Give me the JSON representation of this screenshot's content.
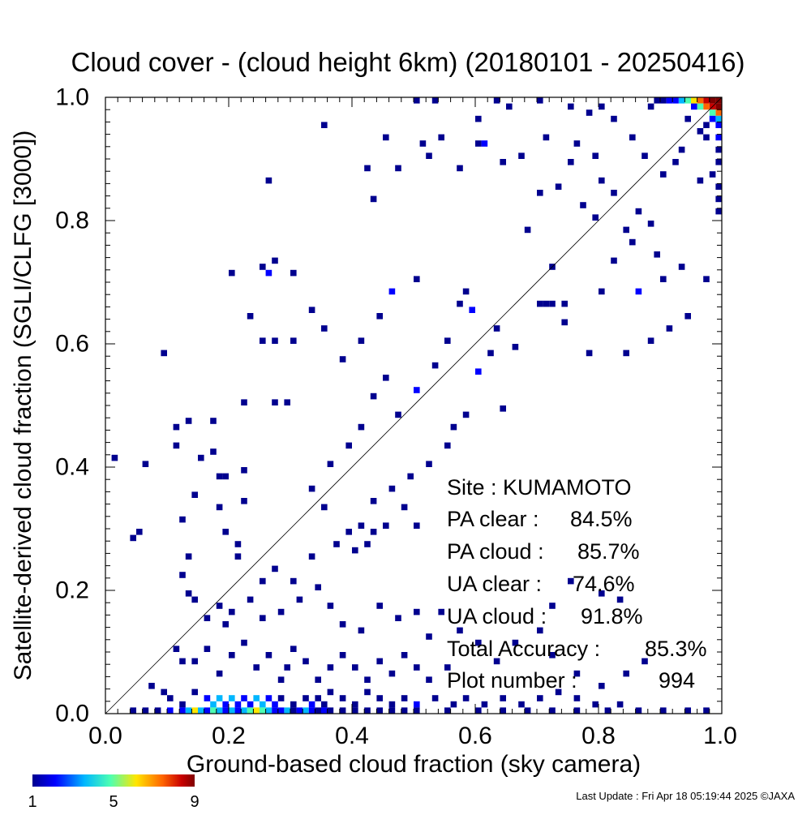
{
  "title": "Cloud cover - (cloud height 6km)  (20180101 - 20250416)",
  "footer": "Last Update : Fri Apr 18 05:19:44 2025  ©JAXA",
  "colors": {
    "colorscale": [
      "#00008f",
      "#0000ff",
      "#00b7ff",
      "#4dffb2",
      "#ffe600",
      "#ff6600",
      "#c80000",
      "#800000"
    ]
  },
  "colorbar": {
    "min": 1,
    "mid": 5,
    "max": 9,
    "tick_labels": [
      "1",
      "5",
      "9"
    ]
  },
  "stats": [
    {
      "label": "Site : KUMAMOTO",
      "value": ""
    },
    {
      "label": "PA clear :",
      "value": "84.5%"
    },
    {
      "label": "PA cloud :",
      "value": "85.7%"
    },
    {
      "label": "UA clear :",
      "value": "74.6%"
    },
    {
      "label": "UA cloud :",
      "value": "91.8%"
    },
    {
      "label": "Total Accuracy :",
      "value": "85.3%"
    },
    {
      "label": "Plot number :",
      "value": "994"
    }
  ],
  "chart_data": {
    "type": "heatmap",
    "xlabel": "Ground-based cloud fraction (sky camera)",
    "ylabel": "Satellite-derived cloud fraction (SGLI/CLFG [3000])",
    "xlim": [
      0.0,
      1.0
    ],
    "ylim": [
      0.0,
      1.0
    ],
    "x_tick_labels": [
      "0.0",
      "0.2",
      "0.4",
      "0.6",
      "0.8",
      "1.0"
    ],
    "y_tick_labels": [
      "0.0",
      "0.2",
      "0.4",
      "0.6",
      "0.8",
      "1.0"
    ],
    "bin_size": 0.01,
    "reference_line": [
      [
        0,
        0
      ],
      [
        1,
        1
      ]
    ],
    "cells": [
      [
        0.98,
        0.99,
        9
      ],
      [
        0.99,
        0.99,
        9
      ],
      [
        0.97,
        0.99,
        8
      ],
      [
        0.99,
        0.98,
        9
      ],
      [
        0.98,
        0.98,
        8
      ],
      [
        0.96,
        0.99,
        7
      ],
      [
        0.97,
        0.98,
        7
      ],
      [
        0.99,
        0.97,
        7
      ],
      [
        0.95,
        0.99,
        6
      ],
      [
        0.94,
        0.99,
        4
      ],
      [
        0.93,
        0.99,
        3
      ],
      [
        0.96,
        0.98,
        4
      ],
      [
        0.98,
        0.97,
        4
      ],
      [
        0.99,
        0.96,
        3
      ],
      [
        0.92,
        0.99,
        2
      ],
      [
        0.91,
        0.99,
        2
      ],
      [
        0.99,
        0.95,
        2
      ],
      [
        0.95,
        0.98,
        2
      ],
      [
        0.98,
        0.96,
        2
      ],
      [
        0.99,
        0.93,
        2
      ],
      [
        0.9,
        0.99,
        1
      ],
      [
        0.89,
        0.99,
        1
      ],
      [
        0.88,
        0.98,
        1
      ],
      [
        0.99,
        0.91,
        1
      ],
      [
        0.99,
        0.89,
        1
      ],
      [
        0.97,
        0.95,
        1
      ],
      [
        0.96,
        0.94,
        1
      ],
      [
        0.94,
        0.96,
        1
      ],
      [
        0.97,
        0.93,
        1
      ],
      [
        0.99,
        0.85,
        1
      ],
      [
        0.99,
        0.83,
        1
      ],
      [
        0.99,
        0.81,
        1
      ],
      [
        0.98,
        0.87,
        1
      ],
      [
        0.96,
        0.86,
        1
      ],
      [
        0.93,
        0.91,
        1
      ],
      [
        0.92,
        0.89,
        1
      ],
      [
        0.9,
        0.87,
        1
      ],
      [
        0.87,
        0.9,
        1
      ],
      [
        0.85,
        0.93,
        1
      ],
      [
        0.82,
        0.96,
        1
      ],
      [
        0.8,
        0.98,
        1
      ],
      [
        0.78,
        0.97,
        1
      ],
      [
        0.75,
        0.98,
        1
      ],
      [
        0.7,
        0.99,
        1
      ],
      [
        0.65,
        0.98,
        1
      ],
      [
        0.63,
        0.99,
        1
      ],
      [
        0.6,
        0.96,
        1
      ],
      [
        0.53,
        0.99,
        1
      ],
      [
        0.5,
        0.99,
        1
      ],
      [
        0.86,
        0.81,
        1
      ],
      [
        0.84,
        0.78,
        1
      ],
      [
        0.88,
        0.79,
        1
      ],
      [
        0.82,
        0.84,
        1
      ],
      [
        0.8,
        0.86,
        1
      ],
      [
        0.79,
        0.8,
        1
      ],
      [
        0.77,
        0.82,
        1
      ],
      [
        0.73,
        0.85,
        1
      ],
      [
        0.75,
        0.89,
        1
      ],
      [
        0.7,
        0.84,
        1
      ],
      [
        0.68,
        0.78,
        1
      ],
      [
        0.72,
        0.72,
        1
      ],
      [
        0.7,
        0.66,
        1
      ],
      [
        0.71,
        0.66,
        1
      ],
      [
        0.72,
        0.66,
        1
      ],
      [
        0.74,
        0.66,
        1
      ],
      [
        0.86,
        0.68,
        2
      ],
      [
        0.9,
        0.7,
        1
      ],
      [
        0.8,
        0.68,
        1
      ],
      [
        0.82,
        0.73,
        1
      ],
      [
        0.85,
        0.76,
        1
      ],
      [
        0.89,
        0.74,
        1
      ],
      [
        0.93,
        0.72,
        1
      ],
      [
        0.97,
        0.7,
        1
      ],
      [
        0.94,
        0.64,
        1
      ],
      [
        0.91,
        0.62,
        1
      ],
      [
        0.88,
        0.6,
        1
      ],
      [
        0.84,
        0.58,
        1
      ],
      [
        0.78,
        0.58,
        1
      ],
      [
        0.74,
        0.63,
        1
      ],
      [
        0.66,
        0.59,
        1
      ],
      [
        0.63,
        0.62,
        1
      ],
      [
        0.6,
        0.55,
        2
      ],
      [
        0.59,
        0.65,
        2
      ],
      [
        0.57,
        0.66,
        1
      ],
      [
        0.62,
        0.58,
        1
      ],
      [
        0.64,
        0.49,
        1
      ],
      [
        0.58,
        0.48,
        1
      ],
      [
        0.56,
        0.46,
        1
      ],
      [
        0.55,
        0.43,
        1
      ],
      [
        0.52,
        0.4,
        1
      ],
      [
        0.49,
        0.38,
        1
      ],
      [
        0.46,
        0.36,
        1
      ],
      [
        0.43,
        0.34,
        1
      ],
      [
        0.41,
        0.3,
        1
      ],
      [
        0.39,
        0.29,
        1
      ],
      [
        0.35,
        0.33,
        1
      ],
      [
        0.33,
        0.36,
        1
      ],
      [
        0.36,
        0.4,
        1
      ],
      [
        0.39,
        0.43,
        1
      ],
      [
        0.41,
        0.46,
        1
      ],
      [
        0.43,
        0.51,
        1
      ],
      [
        0.45,
        0.54,
        1
      ],
      [
        0.47,
        0.48,
        1
      ],
      [
        0.5,
        0.52,
        2
      ],
      [
        0.53,
        0.56,
        1
      ],
      [
        0.55,
        0.6,
        1
      ],
      [
        0.58,
        0.68,
        1
      ],
      [
        0.5,
        0.7,
        1
      ],
      [
        0.46,
        0.68,
        2
      ],
      [
        0.44,
        0.64,
        1
      ],
      [
        0.41,
        0.6,
        1
      ],
      [
        0.38,
        0.57,
        1
      ],
      [
        0.35,
        0.62,
        1
      ],
      [
        0.33,
        0.65,
        1
      ],
      [
        0.3,
        0.71,
        1
      ],
      [
        0.25,
        0.72,
        1
      ],
      [
        0.26,
        0.71,
        2
      ],
      [
        0.27,
        0.73,
        1
      ],
      [
        0.2,
        0.71,
        1
      ],
      [
        0.26,
        0.86,
        1
      ],
      [
        0.35,
        0.95,
        1
      ],
      [
        0.43,
        0.83,
        1
      ],
      [
        0.47,
        0.88,
        1
      ],
      [
        0.52,
        0.9,
        1
      ],
      [
        0.57,
        0.88,
        1
      ],
      [
        0.6,
        0.92,
        1
      ],
      [
        0.61,
        0.92,
        2
      ],
      [
        0.64,
        0.89,
        1
      ],
      [
        0.67,
        0.9,
        1
      ],
      [
        0.71,
        0.93,
        1
      ],
      [
        0.76,
        0.92,
        1
      ],
      [
        0.79,
        0.9,
        1
      ],
      [
        0.42,
        0.88,
        1
      ],
      [
        0.45,
        0.93,
        1
      ],
      [
        0.51,
        0.92,
        1
      ],
      [
        0.54,
        0.93,
        1
      ],
      [
        0.23,
        0.64,
        1
      ],
      [
        0.25,
        0.6,
        1
      ],
      [
        0.27,
        0.6,
        1
      ],
      [
        0.3,
        0.6,
        1
      ],
      [
        0.29,
        0.5,
        1
      ],
      [
        0.27,
        0.5,
        1
      ],
      [
        0.22,
        0.5,
        1
      ],
      [
        0.17,
        0.47,
        1
      ],
      [
        0.13,
        0.47,
        1
      ],
      [
        0.11,
        0.46,
        1
      ],
      [
        0.09,
        0.58,
        1
      ],
      [
        0.01,
        0.41,
        1
      ],
      [
        0.06,
        0.4,
        1
      ],
      [
        0.11,
        0.43,
        1
      ],
      [
        0.15,
        0.41,
        1
      ],
      [
        0.17,
        0.42,
        1
      ],
      [
        0.18,
        0.38,
        1
      ],
      [
        0.19,
        0.38,
        1
      ],
      [
        0.22,
        0.39,
        1
      ],
      [
        0.22,
        0.34,
        1
      ],
      [
        0.18,
        0.33,
        1
      ],
      [
        0.14,
        0.35,
        1
      ],
      [
        0.12,
        0.31,
        1
      ],
      [
        0.04,
        0.28,
        1
      ],
      [
        0.05,
        0.29,
        1
      ],
      [
        0.13,
        0.25,
        1
      ],
      [
        0.19,
        0.29,
        1
      ],
      [
        0.21,
        0.27,
        1
      ],
      [
        0.21,
        0.25,
        1
      ],
      [
        0.25,
        0.21,
        1
      ],
      [
        0.27,
        0.23,
        1
      ],
      [
        0.3,
        0.21,
        1
      ],
      [
        0.33,
        0.25,
        1
      ],
      [
        0.37,
        0.27,
        1
      ],
      [
        0.4,
        0.26,
        1
      ],
      [
        0.42,
        0.27,
        1
      ],
      [
        0.43,
        0.29,
        1
      ],
      [
        0.45,
        0.3,
        1
      ],
      [
        0.48,
        0.33,
        1
      ],
      [
        0.5,
        0.3,
        1
      ],
      [
        0.13,
        0.19,
        1
      ],
      [
        0.14,
        0.18,
        1
      ],
      [
        0.12,
        0.22,
        1
      ],
      [
        0.16,
        0.15,
        1
      ],
      [
        0.18,
        0.17,
        1
      ],
      [
        0.19,
        0.14,
        1
      ],
      [
        0.2,
        0.16,
        1
      ],
      [
        0.23,
        0.18,
        1
      ],
      [
        0.25,
        0.15,
        1
      ],
      [
        0.28,
        0.16,
        1
      ],
      [
        0.31,
        0.18,
        1
      ],
      [
        0.34,
        0.2,
        1
      ],
      [
        0.36,
        0.17,
        1
      ],
      [
        0.38,
        0.14,
        1
      ],
      [
        0.41,
        0.13,
        1
      ],
      [
        0.44,
        0.17,
        1
      ],
      [
        0.47,
        0.15,
        1
      ],
      [
        0.5,
        0.16,
        1
      ],
      [
        0.52,
        0.12,
        1
      ],
      [
        0.54,
        0.16,
        1
      ],
      [
        0.57,
        0.13,
        1
      ],
      [
        0.6,
        0.11,
        1
      ],
      [
        0.63,
        0.08,
        1
      ],
      [
        0.66,
        0.11,
        1
      ],
      [
        0.7,
        0.13,
        1
      ],
      [
        0.72,
        0.17,
        1
      ],
      [
        0.75,
        0.21,
        1
      ],
      [
        0.8,
        0.19,
        1
      ],
      [
        0.83,
        0.18,
        1
      ],
      [
        0.87,
        0.08,
        1
      ],
      [
        0.84,
        0.06,
        1
      ],
      [
        0.8,
        0.04,
        1
      ],
      [
        0.76,
        0.06,
        1
      ],
      [
        0.72,
        0.09,
        1
      ],
      [
        0.11,
        0.1,
        1
      ],
      [
        0.12,
        0.08,
        1
      ],
      [
        0.14,
        0.08,
        1
      ],
      [
        0.16,
        0.1,
        1
      ],
      [
        0.18,
        0.06,
        1
      ],
      [
        0.2,
        0.09,
        1
      ],
      [
        0.22,
        0.11,
        1
      ],
      [
        0.24,
        0.07,
        1
      ],
      [
        0.26,
        0.09,
        1
      ],
      [
        0.28,
        0.05,
        1
      ],
      [
        0.29,
        0.07,
        1
      ],
      [
        0.3,
        0.1,
        1
      ],
      [
        0.32,
        0.08,
        1
      ],
      [
        0.34,
        0.05,
        1
      ],
      [
        0.36,
        0.07,
        1
      ],
      [
        0.38,
        0.09,
        1
      ],
      [
        0.4,
        0.07,
        1
      ],
      [
        0.42,
        0.05,
        1
      ],
      [
        0.44,
        0.08,
        1
      ],
      [
        0.46,
        0.06,
        1
      ],
      [
        0.48,
        0.09,
        1
      ],
      [
        0.5,
        0.07,
        1
      ],
      [
        0.52,
        0.05,
        1
      ],
      [
        0.55,
        0.07,
        1
      ],
      [
        0.07,
        0.04,
        1
      ],
      [
        0.09,
        0.03,
        1
      ],
      [
        0.1,
        0.02,
        1
      ],
      [
        0.12,
        0.01,
        1
      ],
      [
        0.14,
        0.03,
        1
      ],
      [
        0.16,
        0.02,
        2
      ],
      [
        0.17,
        0.01,
        3
      ],
      [
        0.18,
        0.02,
        3
      ],
      [
        0.19,
        0.01,
        2
      ],
      [
        0.2,
        0.02,
        3
      ],
      [
        0.21,
        0.01,
        2
      ],
      [
        0.22,
        0.02,
        2
      ],
      [
        0.23,
        0.01,
        2
      ],
      [
        0.24,
        0.02,
        3
      ],
      [
        0.25,
        0.01,
        3
      ],
      [
        0.26,
        0.02,
        2
      ],
      [
        0.27,
        0.01,
        2
      ],
      [
        0.28,
        0.02,
        1
      ],
      [
        0.3,
        0.01,
        1
      ],
      [
        0.32,
        0.02,
        1
      ],
      [
        0.33,
        0.01,
        2
      ],
      [
        0.34,
        0.02,
        1
      ],
      [
        0.35,
        0.01,
        1
      ],
      [
        0.36,
        0.03,
        1
      ],
      [
        0.38,
        0.02,
        1
      ],
      [
        0.4,
        0.01,
        1
      ],
      [
        0.42,
        0.03,
        1
      ],
      [
        0.44,
        0.02,
        1
      ],
      [
        0.46,
        0.01,
        1
      ],
      [
        0.48,
        0.02,
        1
      ],
      [
        0.5,
        0.01,
        2
      ],
      [
        0.53,
        0.02,
        1
      ],
      [
        0.56,
        0.01,
        1
      ],
      [
        0.58,
        0.02,
        1
      ],
      [
        0.61,
        0.01,
        1
      ],
      [
        0.64,
        0.02,
        1
      ],
      [
        0.67,
        0.01,
        1
      ],
      [
        0.7,
        0.02,
        1
      ],
      [
        0.73,
        0.03,
        1
      ],
      [
        0.76,
        0.02,
        1
      ],
      [
        0.79,
        0.01,
        1
      ],
      [
        0.83,
        0.01,
        1
      ],
      [
        0.04,
        0.0,
        1
      ],
      [
        0.06,
        0.0,
        1
      ],
      [
        0.08,
        0.0,
        1
      ],
      [
        0.1,
        0.0,
        2
      ],
      [
        0.12,
        0.0,
        2
      ],
      [
        0.13,
        0.0,
        3
      ],
      [
        0.14,
        0.0,
        6
      ],
      [
        0.15,
        0.0,
        3
      ],
      [
        0.16,
        0.0,
        2
      ],
      [
        0.17,
        0.0,
        4
      ],
      [
        0.18,
        0.0,
        3
      ],
      [
        0.19,
        0.0,
        2
      ],
      [
        0.2,
        0.0,
        3
      ],
      [
        0.21,
        0.0,
        2
      ],
      [
        0.22,
        0.0,
        3
      ],
      [
        0.23,
        0.0,
        4
      ],
      [
        0.24,
        0.0,
        5
      ],
      [
        0.25,
        0.0,
        4
      ],
      [
        0.26,
        0.0,
        3
      ],
      [
        0.27,
        0.0,
        2
      ],
      [
        0.28,
        0.0,
        2
      ],
      [
        0.29,
        0.0,
        3
      ],
      [
        0.3,
        0.0,
        1
      ],
      [
        0.31,
        0.0,
        2
      ],
      [
        0.32,
        0.0,
        3
      ],
      [
        0.33,
        0.0,
        2
      ],
      [
        0.34,
        0.0,
        1
      ],
      [
        0.35,
        0.0,
        2
      ],
      [
        0.36,
        0.0,
        1
      ],
      [
        0.38,
        0.0,
        1
      ],
      [
        0.4,
        0.0,
        1
      ],
      [
        0.42,
        0.0,
        1
      ],
      [
        0.44,
        0.0,
        1
      ],
      [
        0.46,
        0.0,
        1
      ],
      [
        0.48,
        0.0,
        1
      ],
      [
        0.5,
        0.0,
        1
      ],
      [
        0.55,
        0.0,
        1
      ],
      [
        0.6,
        0.0,
        1
      ],
      [
        0.64,
        0.0,
        1
      ],
      [
        0.68,
        0.0,
        1
      ],
      [
        0.72,
        0.0,
        1
      ],
      [
        0.76,
        0.0,
        1
      ],
      [
        0.81,
        0.0,
        1
      ],
      [
        0.86,
        0.0,
        1
      ],
      [
        0.9,
        0.0,
        1
      ],
      [
        0.94,
        0.0,
        1
      ],
      [
        0.97,
        0.0,
        1
      ]
    ]
  }
}
